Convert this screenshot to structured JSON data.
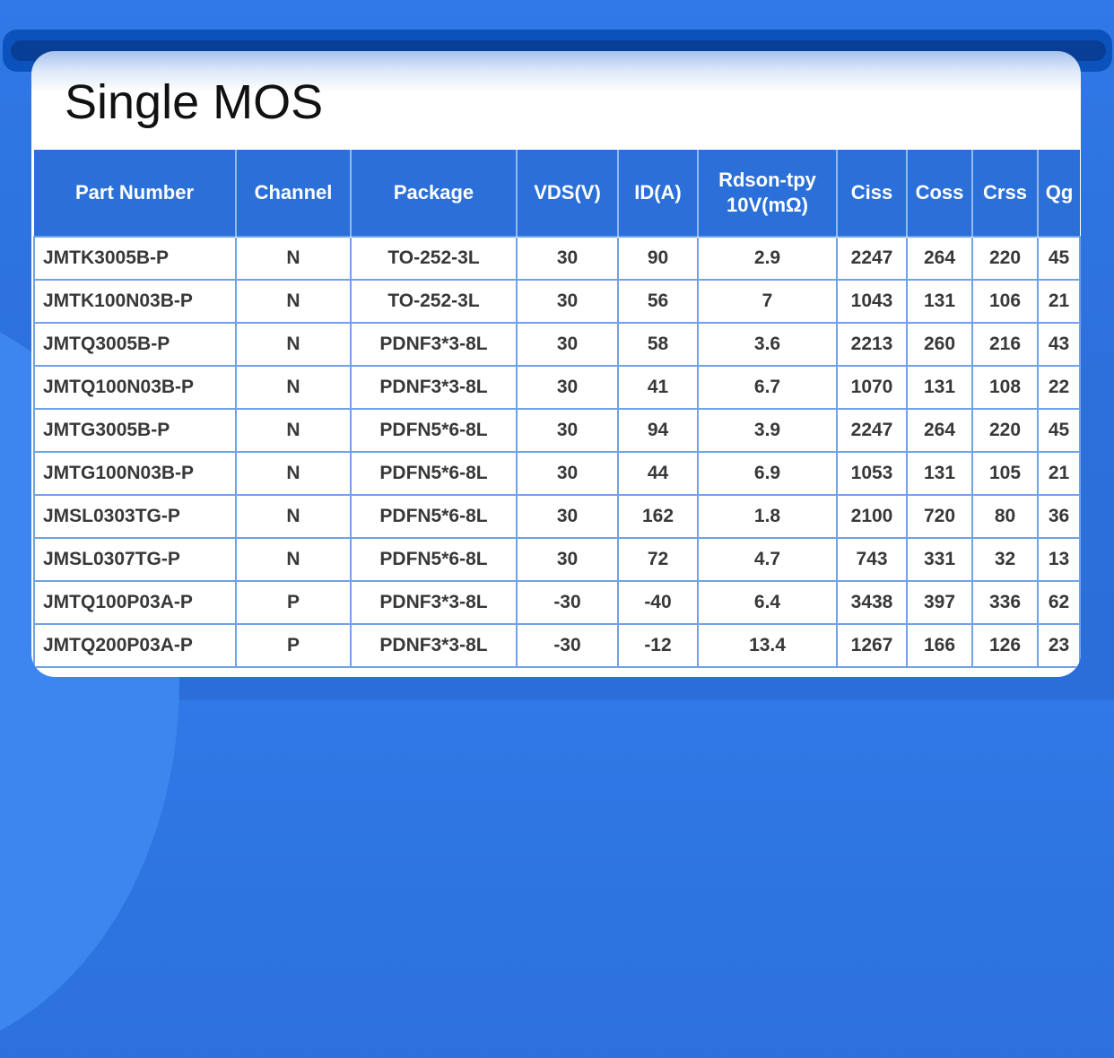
{
  "page_title": "Single MOS",
  "colors": {
    "background_blue": "#2c70dc",
    "background_blob": "#3d86ef",
    "accent_dark_blue": "#0c52bd",
    "accent_navy": "#093e97",
    "header_blue": "#2b70d9",
    "grid_line": "#70a1e9",
    "data_text": "#383838"
  },
  "table": {
    "columns": [
      "Part Number",
      "Channel",
      "Package",
      "VDS(V)",
      "ID(A)",
      "Rdson-tpy 10V(mΩ)",
      "Ciss",
      "Coss",
      "Crss",
      "Qg"
    ],
    "rows": [
      [
        "JMTK3005B-P",
        "N",
        "TO-252-3L",
        "30",
        "90",
        "2.9",
        "2247",
        "264",
        "220",
        "45"
      ],
      [
        "JMTK100N03B-P",
        "N",
        "TO-252-3L",
        "30",
        "56",
        "7",
        "1043",
        "131",
        "106",
        "21"
      ],
      [
        "JMTQ3005B-P",
        "N",
        "PDNF3*3-8L",
        "30",
        "58",
        "3.6",
        "2213",
        "260",
        "216",
        "43"
      ],
      [
        "JMTQ100N03B-P",
        "N",
        "PDNF3*3-8L",
        "30",
        "41",
        "6.7",
        "1070",
        "131",
        "108",
        "22"
      ],
      [
        "JMTG3005B-P",
        "N",
        "PDFN5*6-8L",
        "30",
        "94",
        "3.9",
        "2247",
        "264",
        "220",
        "45"
      ],
      [
        "JMTG100N03B-P",
        "N",
        "PDFN5*6-8L",
        "30",
        "44",
        "6.9",
        "1053",
        "131",
        "105",
        "21"
      ],
      [
        "JMSL0303TG-P",
        "N",
        "PDFN5*6-8L",
        "30",
        "162",
        "1.8",
        "2100",
        "720",
        "80",
        "36"
      ],
      [
        "JMSL0307TG-P",
        "N",
        "PDFN5*6-8L",
        "30",
        "72",
        "4.7",
        "743",
        "331",
        "32",
        "13"
      ],
      [
        "JMTQ100P03A-P",
        "P",
        "PDNF3*3-8L",
        "-30",
        "-40",
        "6.4",
        "3438",
        "397",
        "336",
        "62"
      ],
      [
        "JMTQ200P03A-P",
        "P",
        "PDNF3*3-8L",
        "-30",
        "-12",
        "13.4",
        "1267",
        "166",
        "126",
        "23"
      ]
    ]
  }
}
